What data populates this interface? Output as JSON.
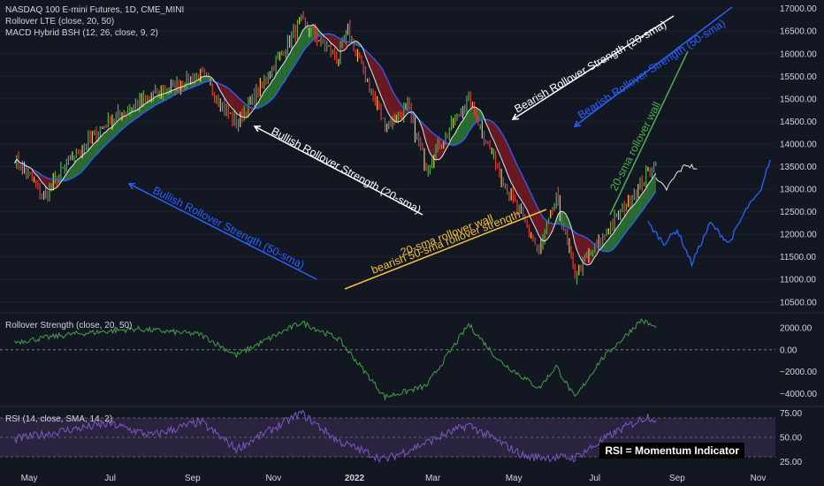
{
  "legend": {
    "title": "NASDAQ 100 E-mini Futures, 1D, CME_MINI",
    "ind1": "Rollover LTE (close, 20, 50)",
    "ind2": "MACD Hybrid BSH (12, 26, close, 9, 2)",
    "ind3": "Rollover Strength (close, 20, 50)",
    "ind4": "RSI (14, close, SMA, 14, 2)"
  },
  "rsi_note": "RSI = Momentum Indicator",
  "colors": {
    "background": "#131722",
    "bull_cloud": "#2e7d32",
    "bear_cloud": "#7b1a22",
    "sma20": "#e6e6e6",
    "sma50": "#2962ff",
    "strength_line": "#43a047",
    "rsi_line": "#7e57c2",
    "rsi_band": "#2a2440",
    "annot_white": "#ffffff",
    "annot_blue": "#2962ff",
    "annot_green": "#4caf50",
    "annot_yellow": "#f0c040"
  },
  "chart_data": [
    {
      "type": "line",
      "title": "NASDAQ 100 E-mini Futures, 1D, CME_MINI",
      "y_ticks": [
        10500,
        11000,
        11500,
        12000,
        12500,
        13000,
        13500,
        14000,
        14500,
        15000,
        15500,
        16000,
        16500,
        17000
      ],
      "y_tick_labels": [
        "10500.00",
        "11000.00",
        "11500.00",
        "12000.00",
        "12500.00",
        "13000.00",
        "13500.00",
        "14000.00",
        "14500.00",
        "15000.00",
        "15500.00",
        "16000.00",
        "16500.00",
        "17000.00"
      ],
      "ylim": [
        10300,
        17150
      ],
      "x_ticks": [
        "May",
        "Jul",
        "Sep",
        "Nov",
        "2022",
        "Mar",
        "May",
        "Jul",
        "Sep",
        "Nov"
      ],
      "price_close_keypoints": [
        {
          "x": "2021-04-20",
          "y": 13700
        },
        {
          "x": "2021-05-12",
          "y": 12850
        },
        {
          "x": "2021-06-01",
          "y": 13650
        },
        {
          "x": "2021-07-01",
          "y": 14550
        },
        {
          "x": "2021-08-01",
          "y": 15050
        },
        {
          "x": "2021-09-07",
          "y": 15550
        },
        {
          "x": "2021-10-04",
          "y": 14450
        },
        {
          "x": "2021-10-25",
          "y": 15400
        },
        {
          "x": "2021-11-22",
          "y": 16700
        },
        {
          "x": "2021-12-20",
          "y": 15900
        },
        {
          "x": "2021-12-27",
          "y": 16500
        },
        {
          "x": "2022-01-24",
          "y": 14400
        },
        {
          "x": "2022-02-10",
          "y": 14800
        },
        {
          "x": "2022-02-24",
          "y": 13500
        },
        {
          "x": "2022-03-28",
          "y": 15000
        },
        {
          "x": "2022-04-26",
          "y": 13000
        },
        {
          "x": "2022-05-20",
          "y": 11600
        },
        {
          "x": "2022-06-02",
          "y": 12800
        },
        {
          "x": "2022-06-16",
          "y": 11100
        },
        {
          "x": "2022-07-01",
          "y": 11700
        },
        {
          "x": "2022-08-16",
          "y": 13600
        }
      ],
      "sma20_projection": [
        {
          "x": "2022-08-16",
          "y": 13200
        },
        {
          "x": "2022-08-24",
          "y": 13000
        },
        {
          "x": "2022-09-01",
          "y": 13350
        },
        {
          "x": "2022-09-08",
          "y": 13550
        },
        {
          "x": "2022-09-16",
          "y": 13450
        }
      ],
      "sma50_projection": [
        {
          "x": "2022-08-10",
          "y": 12250
        },
        {
          "x": "2022-08-22",
          "y": 11800
        },
        {
          "x": "2022-09-01",
          "y": 12100
        },
        {
          "x": "2022-09-12",
          "y": 11350
        },
        {
          "x": "2022-09-26",
          "y": 12250
        },
        {
          "x": "2022-10-10",
          "y": 11800
        },
        {
          "x": "2022-10-24",
          "y": 12600
        },
        {
          "x": "2022-11-02",
          "y": 12900
        },
        {
          "x": "2022-11-10",
          "y": 13650
        }
      ],
      "annotations": [
        {
          "text": "Bullish Rollover Strength (20-sma)",
          "color": "white"
        },
        {
          "text": "Bullish Rollover Strength (50-sma)",
          "color": "blue"
        },
        {
          "text": "Bearish Rollover Strength (20-sma)",
          "color": "white"
        },
        {
          "text": "Bearish Rollover Strength (50-sma)",
          "color": "blue"
        },
        {
          "text": "20-sma rollover wall",
          "color": "green"
        },
        {
          "text": "20-sma rollover wall",
          "color": "yellow"
        },
        {
          "text": "bearish 50-sma rollover strength",
          "color": "yellow"
        }
      ]
    },
    {
      "type": "line",
      "title": "Rollover Strength (close, 20, 50)",
      "y_ticks": [
        2000,
        0,
        -2000,
        -4000
      ],
      "y_tick_labels": [
        "2000.00",
        "0.00",
        "−2000.00",
        "−4000.00"
      ],
      "ylim": [
        -5000,
        3200
      ],
      "values_keypoints": [
        {
          "x": "2021-04-20",
          "y": 700
        },
        {
          "x": "2021-06-01",
          "y": 1400
        },
        {
          "x": "2021-07-20",
          "y": 1900
        },
        {
          "x": "2021-09-07",
          "y": 1400
        },
        {
          "x": "2021-10-04",
          "y": -500
        },
        {
          "x": "2021-11-22",
          "y": 2500
        },
        {
          "x": "2021-12-20",
          "y": 1000
        },
        {
          "x": "2022-01-24",
          "y": -4300
        },
        {
          "x": "2022-02-24",
          "y": -3300
        },
        {
          "x": "2022-03-28",
          "y": 2300
        },
        {
          "x": "2022-04-20",
          "y": -1000
        },
        {
          "x": "2022-05-20",
          "y": -3500
        },
        {
          "x": "2022-06-02",
          "y": -1500
        },
        {
          "x": "2022-06-16",
          "y": -4400
        },
        {
          "x": "2022-07-05",
          "y": -1000
        },
        {
          "x": "2022-08-05",
          "y": 2700
        },
        {
          "x": "2022-08-16",
          "y": 2000
        }
      ]
    },
    {
      "type": "line",
      "title": "RSI (14, close, SMA, 14, 2)",
      "y_ticks": [
        75,
        50,
        25
      ],
      "y_tick_labels": [
        "75.00",
        "50.00",
        "25.00"
      ],
      "ylim": [
        20,
        80
      ],
      "band": [
        30,
        70
      ],
      "values_keypoints": [
        {
          "x": "2021-04-20",
          "y": 48
        },
        {
          "x": "2021-06-01",
          "y": 58
        },
        {
          "x": "2021-07-01",
          "y": 64
        },
        {
          "x": "2021-08-01",
          "y": 52
        },
        {
          "x": "2021-09-07",
          "y": 66
        },
        {
          "x": "2021-10-04",
          "y": 38
        },
        {
          "x": "2021-11-22",
          "y": 75
        },
        {
          "x": "2021-12-20",
          "y": 46
        },
        {
          "x": "2022-01-24",
          "y": 27
        },
        {
          "x": "2022-03-28",
          "y": 63
        },
        {
          "x": "2022-05-10",
          "y": 30
        },
        {
          "x": "2022-06-16",
          "y": 29
        },
        {
          "x": "2022-07-20",
          "y": 58
        },
        {
          "x": "2022-08-10",
          "y": 72
        },
        {
          "x": "2022-08-16",
          "y": 68
        }
      ]
    }
  ]
}
